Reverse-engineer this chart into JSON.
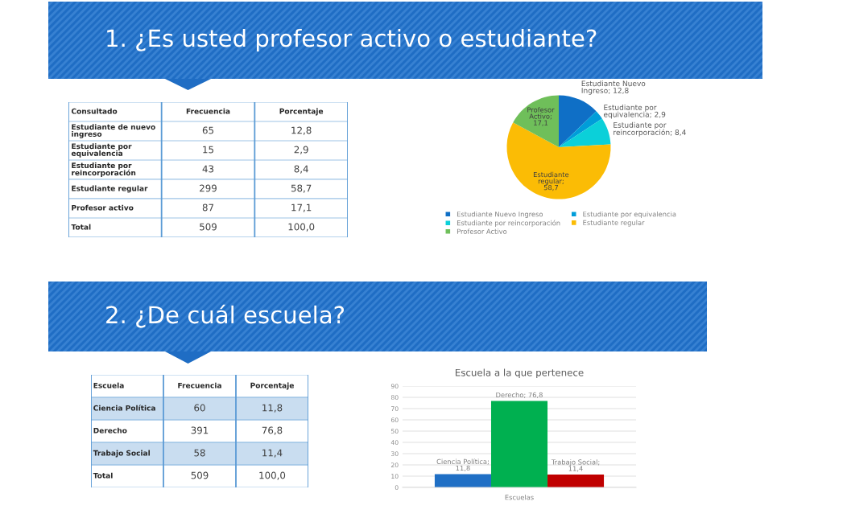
{
  "chart_data": [
    {
      "type": "other",
      "title": "1. ¿Es usted profesor activo o estudiante?",
      "annotations": [
        "Consultado",
        "Frecuencia",
        "Porcentaje",
        "Estudiante de nuevo ingreso",
        "65",
        "12,8",
        "Estudiante por equivalencia",
        "15",
        "2,9",
        "Estudiante por reincorporación",
        "43",
        "8,4",
        "Estudiante regular",
        "299",
        "58,7",
        "Profesor activo",
        "87",
        "17,1",
        "Total",
        "509",
        "100,0"
      ]
    },
    {
      "type": "pie",
      "categories": [
        "Estudiante Nuevo Ingreso",
        "Estudiante por equivalencia",
        "Estudiante por reincorporación",
        "Estudiante regular",
        "Profesor Activo"
      ],
      "values": [
        12.8,
        2.9,
        8.4,
        58.7,
        17.1
      ],
      "colors": [
        "#0f6fc6",
        "#009dd9",
        "#0bd0d9",
        "#fbbc05",
        "#6fbf5a"
      ],
      "value_labels": [
        "Estudiante Nuevo Ingreso; 12,8",
        "Estudiante por equivalencia; 2,9",
        "Estudiante por reincorporación; 8,4",
        "Estudiante regular; 58,7",
        "Profesor Activo; 17,1"
      ],
      "legend": "bottom"
    },
    {
      "type": "other",
      "title": "2. ¿De cuál escuela?",
      "annotations": [
        "Escuela",
        "Frecuencia",
        "Porcentaje",
        "Ciencia Política",
        "60",
        "11,8",
        "Derecho",
        "391",
        "76,8",
        "Trabajo Social",
        "58",
        "11,4",
        "Total",
        "509",
        "100,0"
      ],
      "colors": [
        "#ffffff",
        "#c9ddf0",
        "#ffffff",
        "#c9ddf0",
        "#ffffff"
      ]
    },
    {
      "type": "bar",
      "title": "Escuela a la que pertenece",
      "xlabel": "Escuelas",
      "categories": [
        null,
        null,
        null
      ],
      "values": [
        11.8,
        76.8,
        11.4
      ],
      "colors": [
        "#1f6fc5",
        "#00b050",
        "#c00000"
      ],
      "value_labels": [
        "Ciencia Política; 11,8",
        "Derecho; 76,8",
        "Trabajo Social; 11,4"
      ],
      "ylim": [
        0,
        90
      ],
      "yticks": [
        0,
        10,
        20,
        30,
        40,
        50,
        60,
        70,
        80,
        90
      ],
      "grid": "y"
    }
  ]
}
